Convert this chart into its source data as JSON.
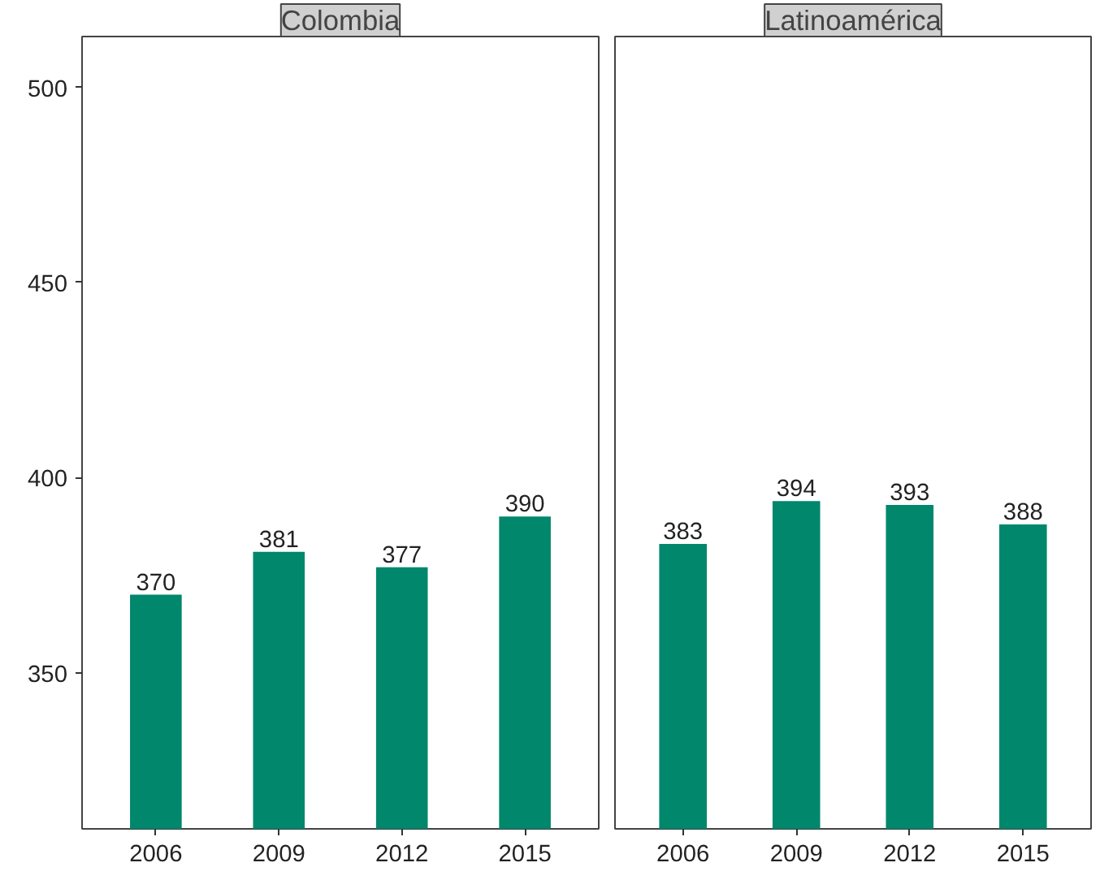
{
  "chart_data": [
    {
      "type": "bar",
      "title": "Colombia",
      "categories": [
        "2006",
        "2009",
        "2012",
        "2015"
      ],
      "values": [
        370,
        381,
        377,
        390
      ],
      "color": "#00876c",
      "ylim": [
        310,
        513
      ],
      "yticks": [
        350,
        400,
        450,
        500
      ],
      "data_labels": true,
      "grid": false
    },
    {
      "type": "bar",
      "title": "Latinoamérica",
      "categories": [
        "2006",
        "2009",
        "2012",
        "2015"
      ],
      "values": [
        383,
        394,
        393,
        388
      ],
      "color": "#00876c",
      "ylim": [
        310,
        513
      ],
      "yticks": [
        350,
        400,
        450,
        500
      ],
      "data_labels": true,
      "grid": false,
      "tick_labels": "x"
    }
  ]
}
